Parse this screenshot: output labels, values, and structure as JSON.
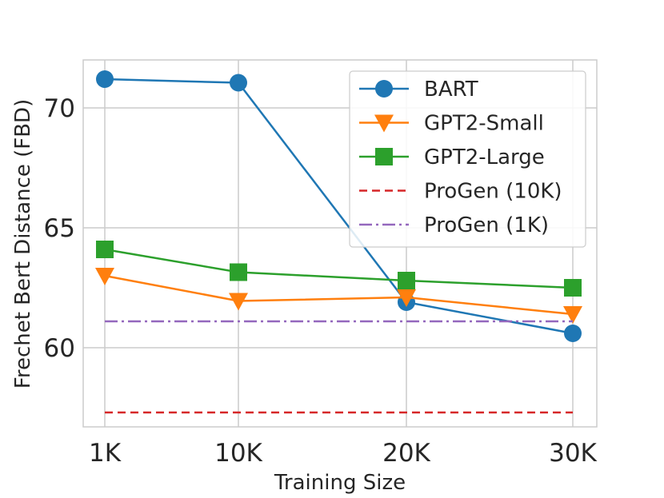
{
  "chart_data": {
    "type": "line",
    "title": "",
    "xlabel": "Training Size",
    "ylabel": "Frechet Bert Distance (FBD)",
    "categories": [
      "1K",
      "10K",
      "20K",
      "30K"
    ],
    "yticks": [
      60,
      65,
      70
    ],
    "ylim": [
      56.7,
      72.0
    ],
    "grid": true,
    "legend_position": "top-right",
    "series": [
      {
        "name": "BART",
        "color": "#1f77b4",
        "marker": "circle",
        "style": "solid",
        "values": [
          71.2,
          71.05,
          61.9,
          60.6
        ]
      },
      {
        "name": "GPT2-Small",
        "color": "#ff7f0e",
        "marker": "triangle-down",
        "style": "solid",
        "values": [
          63.0,
          61.95,
          62.1,
          61.4
        ]
      },
      {
        "name": "GPT2-Large",
        "color": "#2ca02c",
        "marker": "square",
        "style": "solid",
        "values": [
          64.1,
          63.15,
          62.8,
          62.5
        ]
      },
      {
        "name": "ProGen (10K)",
        "color": "#d62728",
        "marker": "none",
        "style": "dashed",
        "values": [
          57.3,
          57.3,
          57.3,
          57.3
        ]
      },
      {
        "name": "ProGen (1K)",
        "color": "#9467bd",
        "marker": "none",
        "style": "dashdot",
        "values": [
          61.1,
          61.1,
          61.1,
          61.1
        ]
      }
    ]
  }
}
